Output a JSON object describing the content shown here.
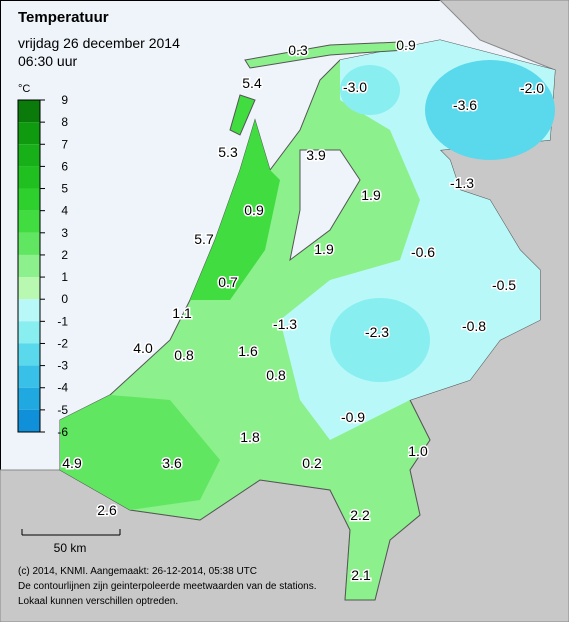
{
  "header": {
    "title": "Temperatuur",
    "subtitle": "vrijdag 26 december 2014",
    "time": "06:30 uur"
  },
  "legend": {
    "unit": "°C",
    "labels": [
      9,
      8,
      7,
      6,
      5,
      4,
      3,
      2,
      1,
      0,
      -1,
      -2,
      -3,
      -4,
      -5,
      -6
    ],
    "colors": [
      "#0a7a0a",
      "#109a10",
      "#18b018",
      "#20c020",
      "#2ed02e",
      "#40dc40",
      "#60e660",
      "#8cf08c",
      "#b8f8b0",
      "#b8f8f8",
      "#88eef0",
      "#5ad8ec",
      "#38c0e8",
      "#20a8e0",
      "#1090d8"
    ]
  },
  "stations": [
    "0.3",
    "0.9",
    "-3.0",
    "-3.6",
    "-2.0",
    "5.4",
    "5.3",
    "3.9",
    "1.9",
    "-1.3",
    "0.9",
    "5.7",
    "1.9",
    "-0.6",
    "-0.5",
    "0.7",
    "1.1",
    "-1.3",
    "-2.3",
    "-0.8",
    "4.0",
    "0.8",
    "1.6",
    "0.8",
    "-0.9",
    "1.8",
    "0.2",
    "1.0",
    "4.9",
    "3.6",
    "2.6",
    "2.2",
    "2.1"
  ],
  "scale": {
    "label": "50 km"
  },
  "footer": [
    "(c) 2014, KNMI. Aangemaakt: 26-12-2014, 05:38 UTC",
    "De contourlijnen zijn geinterpoleerde meetwaarden van de stations.",
    "Lokaal kunnen verschillen optreden."
  ]
}
